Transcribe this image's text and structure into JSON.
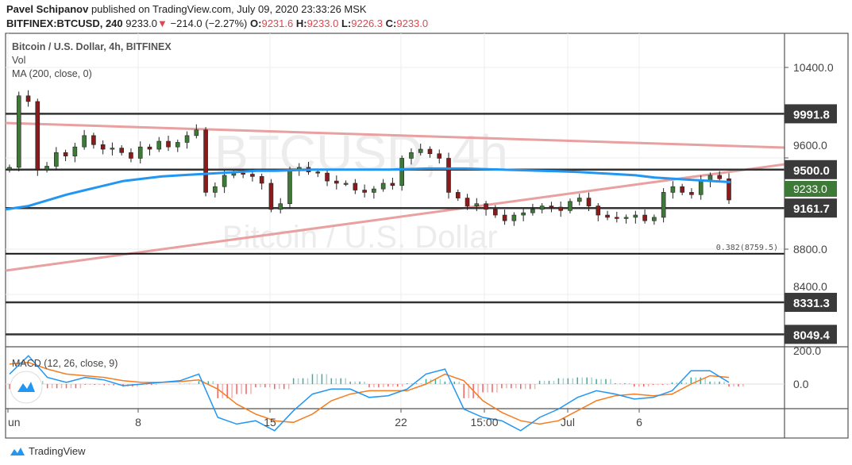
{
  "header": {
    "author": "Pavel Schipanov",
    "published": "published on TradingView.com, July 09, 2020 23:33:26 MSK",
    "symbol": "BITFINEX:BTCUSD, 240",
    "last": "9233.0",
    "change": "−214.0 (−2.27%)",
    "o_label": "O:",
    "o": "9231.6",
    "h_label": "H:",
    "h": "9233.0",
    "l_label": "L:",
    "l": "9226.3",
    "c_label": "C:",
    "c": "9233.0"
  },
  "legend": {
    "title": "Bitcoin / U.S. Dollar, 4h, BITFINEX",
    "vol": "Vol",
    "ma": "MA (200, close, 0)",
    "macd": "MACD (12, 26, close, 9)"
  },
  "watermark": {
    "big": "BTCUSD, 4h",
    "small": "Bitcoin / U.S. Dollar"
  },
  "brand": "TradingView",
  "colors": {
    "up": "#3d7a37",
    "down": "#8b1a1a",
    "ma": "#2196f3",
    "trend": "#e8a0a0",
    "macd": "#2196f3",
    "signal": "#f57c20",
    "hist_up": "#26a69a",
    "hist_down": "#ef5350",
    "last_label": "#3d7a37",
    "level_label": "#3a3a3a"
  },
  "chart_data": [
    {
      "type": "candlestick",
      "title": "Bitcoin / U.S. Dollar, 4h, BITFINEX",
      "ylim": [
        8000,
        10600
      ],
      "price_ticks": [
        "10400.0",
        "9600.0",
        "8800.0",
        "8400.0"
      ],
      "time_ticks": [
        "un",
        "8",
        "15",
        "22",
        "15:00",
        "Jul",
        "6"
      ],
      "closes": [
        9520,
        10150,
        10100,
        9500,
        9530,
        9650,
        9620,
        9700,
        9800,
        9720,
        9680,
        9690,
        9650,
        9600,
        9700,
        9680,
        9750,
        9700,
        9740,
        9800,
        9850,
        9300,
        9350,
        9450,
        9470,
        9460,
        9440,
        9380,
        9150,
        9200,
        9500,
        9520,
        9480,
        9470,
        9400,
        9380,
        9380,
        9320,
        9300,
        9330,
        9380,
        9360,
        9600,
        9650,
        9680,
        9640,
        9600,
        9300,
        9250,
        9180,
        9200,
        9150,
        9100,
        9050,
        9100,
        9120,
        9150,
        9180,
        9170,
        9140,
        9220,
        9250,
        9180,
        9100,
        9080,
        9070,
        9080,
        9100,
        9050,
        9080,
        9300,
        9350,
        9300,
        9280,
        9400,
        9450,
        9420,
        9233
      ],
      "ma200": [
        9150,
        9180,
        9230,
        9280,
        9320,
        9360,
        9400,
        9420,
        9440,
        9450,
        9460,
        9470,
        9480,
        9490,
        9490,
        9495,
        9500,
        9500,
        9500,
        9500,
        9500,
        9505,
        9510,
        9510,
        9510,
        9505,
        9500,
        9495,
        9490,
        9485,
        9480,
        9470,
        9460,
        9450,
        9430,
        9420,
        9410,
        9400,
        9390
      ],
      "horizontal_levels": [
        {
          "value": 9991.8,
          "label": "9991.8"
        },
        {
          "value": 9500.0,
          "label": "9500.0"
        },
        {
          "value": 9161.7,
          "label": "9161.7"
        },
        {
          "value": 8331.3,
          "label": "8331.3"
        },
        {
          "value": 8049.4,
          "label": "8049.4"
        }
      ],
      "fib_level": {
        "value": 8759.5,
        "label": "0.382(8759.5)"
      },
      "last_price": {
        "value": 9233.0,
        "label": "9233.0"
      },
      "trendlines": [
        {
          "name": "descending-resistance",
          "start": 9911,
          "end": 9694
        },
        {
          "name": "ascending-support",
          "start": 8611,
          "end": 9547
        }
      ]
    },
    {
      "type": "line",
      "title": "MACD (12, 26, close, 9)",
      "ylim": [
        -400,
        210
      ],
      "ticks": [
        "200.0",
        "0.0"
      ],
      "macd": [
        60,
        170,
        40,
        10,
        40,
        25,
        -10,
        0,
        10,
        20,
        60,
        -200,
        -240,
        -220,
        -280,
        -160,
        -60,
        -30,
        -30,
        -80,
        -70,
        -30,
        60,
        90,
        -150,
        -200,
        -220,
        -280,
        -200,
        -150,
        -80,
        -40,
        -60,
        -90,
        -80,
        -40,
        80,
        80,
        10
      ],
      "signal": [
        120,
        130,
        90,
        60,
        50,
        40,
        20,
        10,
        10,
        15,
        25,
        -30,
        -120,
        -180,
        -220,
        -230,
        -180,
        -100,
        -60,
        -40,
        -40,
        -40,
        0,
        60,
        20,
        -100,
        -170,
        -220,
        -240,
        -220,
        -160,
        -100,
        -70,
        -60,
        -70,
        -60,
        0,
        50,
        40
      ]
    }
  ]
}
